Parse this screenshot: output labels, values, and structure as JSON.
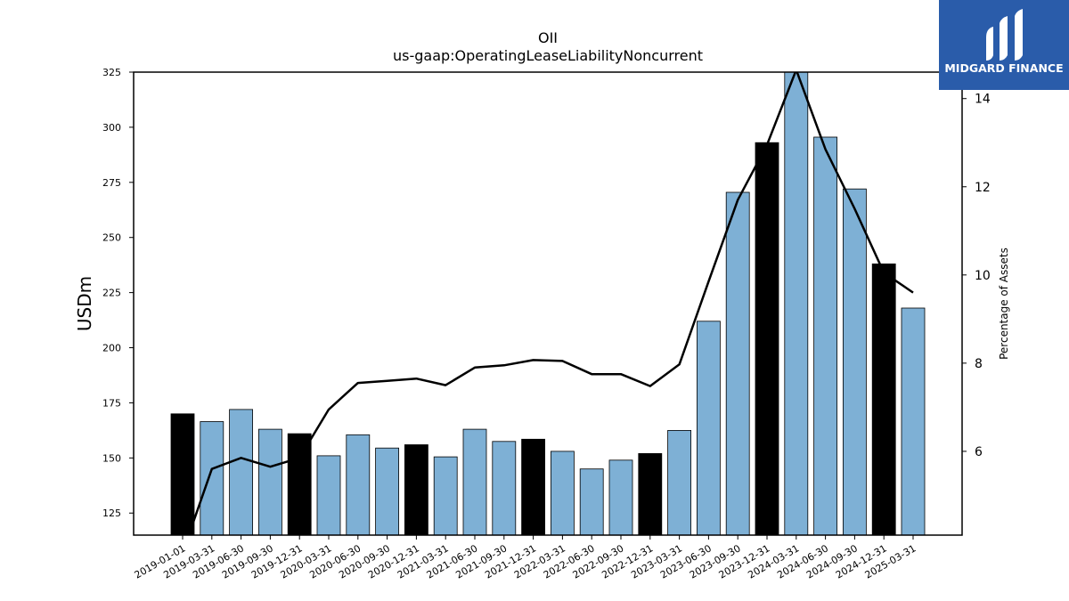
{
  "chart_data": {
    "type": "bar+line",
    "title": "OII",
    "subtitle": "us-gaap:OperatingLeaseLiabilityNoncurrent",
    "ylabel_left": "USDm",
    "ylabel_right": "Percentage of Assets",
    "ylim_left": [
      115,
      325
    ],
    "ylim_right": [
      4.1,
      14.6
    ],
    "yticks_left": [
      125,
      150,
      175,
      200,
      225,
      250,
      275,
      300,
      325
    ],
    "yticks_right": [
      6,
      8,
      10,
      12,
      14
    ],
    "categories": [
      "2019-01-01",
      "2019-03-31",
      "2019-06-30",
      "2019-09-30",
      "2019-12-31",
      "2020-03-31",
      "2020-06-30",
      "2020-09-30",
      "2020-12-31",
      "2021-03-31",
      "2021-06-30",
      "2021-09-30",
      "2021-12-31",
      "2022-03-31",
      "2022-06-30",
      "2022-09-30",
      "2022-12-31",
      "2023-03-31",
      "2023-06-30",
      "2023-09-30",
      "2023-12-31",
      "2024-03-31",
      "2024-06-30",
      "2024-09-30",
      "2024-12-31",
      "2025-03-31"
    ],
    "bars": {
      "name": "OperatingLeaseLiabilityNoncurrent",
      "values": [
        170,
        166.5,
        172,
        163,
        161,
        151,
        160.5,
        154.5,
        156,
        150.5,
        163,
        157.5,
        158.5,
        153,
        145,
        149,
        152,
        162.5,
        212,
        270.5,
        293,
        326,
        295.5,
        272,
        238,
        218
      ],
      "year_end": [
        true,
        false,
        false,
        false,
        true,
        false,
        false,
        false,
        true,
        false,
        false,
        false,
        true,
        false,
        false,
        false,
        true,
        false,
        false,
        false,
        true,
        false,
        false,
        false,
        true,
        false
      ]
    },
    "line": {
      "name": "Percentage of Assets",
      "values": [
        3.7,
        5.6,
        5.85,
        5.65,
        5.85,
        6.95,
        7.55,
        7.6,
        7.65,
        7.5,
        7.9,
        7.95,
        8.07,
        8.05,
        7.75,
        7.75,
        7.48,
        7.97,
        9.85,
        11.7,
        12.95,
        14.65,
        12.85,
        11.5,
        10.05,
        9.6
      ]
    },
    "colors": {
      "bar_regular": "#7eb0d5",
      "bar_year_end": "#000000",
      "line": "#000000"
    },
    "grid": false
  },
  "logo": {
    "text": "MIDGARD FINANCE",
    "background": "#2a5caa"
  }
}
